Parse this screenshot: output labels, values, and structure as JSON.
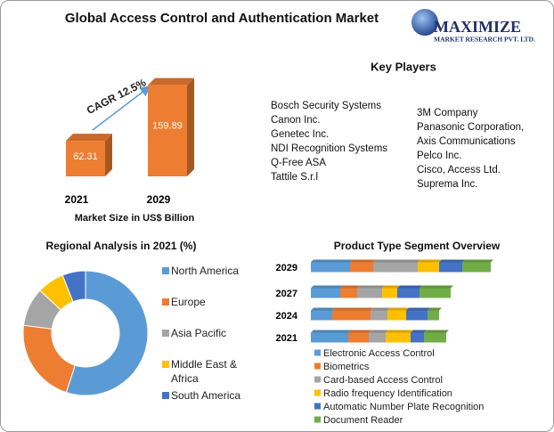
{
  "header": {
    "title": "Global Access Control and Authentication Market"
  },
  "logo": {
    "name": "MAXIMIZE",
    "tagline": "MARKET RESEARCH PVT. LTD."
  },
  "key_players": {
    "title": "Key Players",
    "columns": [
      [
        "Bosch Security Systems",
        "Canon Inc.",
        "Genetec Inc.",
        "NDI Recognition  Systems",
        "Q-Free ASA",
        "Tattile S.r.l"
      ],
      [
        "3M Company",
        "Panasonic Corporation,",
        "Axis Communications",
        "Pelco Inc.",
        "Cisco, Access Ltd.",
        "Suprema Inc."
      ]
    ]
  },
  "chart_data": [
    {
      "type": "bar",
      "categories": [
        "2021",
        "2029"
      ],
      "values": [
        62.31,
        159.89
      ],
      "color": "#ed7d31",
      "xlabel": "Market Size in US$ Billion",
      "annotation": "CAGR 12.5%"
    },
    {
      "type": "donut",
      "title": "Regional Analysis in 2021 (%)",
      "categories": [
        "North America",
        "Europe",
        "Asia Pacific",
        "Middle East & Africa",
        "South America"
      ],
      "values": [
        55,
        22,
        10,
        7,
        6
      ],
      "colors": [
        "#5b9bd5",
        "#ed7d31",
        "#a5a5a5",
        "#ffc000",
        "#4472c4"
      ]
    },
    {
      "type": "stacked-bar",
      "orientation": "horizontal",
      "title": "Product Type Segment Overview",
      "categories": [
        "2029",
        "2027",
        "2024",
        "2021"
      ],
      "series": [
        {
          "name": "Electronic Access Control",
          "color": "#5b9bd5",
          "values": [
            44,
            33,
            24,
            42
          ]
        },
        {
          "name": "Biometrics",
          "color": "#ed7d31",
          "values": [
            26,
            19,
            43,
            23
          ]
        },
        {
          "name": "Card-based Access Control",
          "color": "#a5a5a5",
          "values": [
            50,
            28,
            19,
            19
          ]
        },
        {
          "name": "Radio frequency Identification",
          "color": "#ffc000",
          "values": [
            24,
            17,
            21,
            28
          ]
        },
        {
          "name": "Automatic Number Plate Recognition",
          "color": "#4472c4",
          "values": [
            26,
            25,
            24,
            15
          ]
        },
        {
          "name": "Document Reader",
          "color": "#70ad47",
          "values": [
            32,
            35,
            13,
            25
          ]
        }
      ]
    }
  ]
}
